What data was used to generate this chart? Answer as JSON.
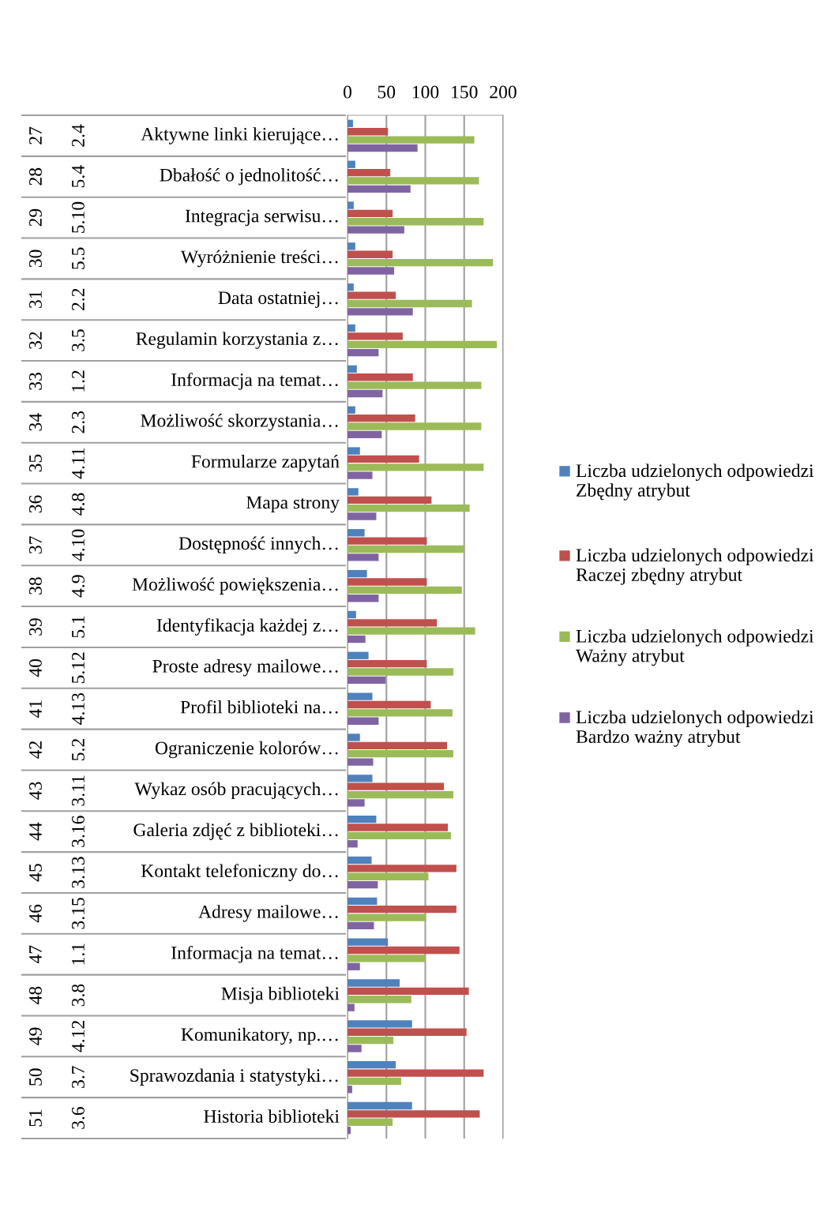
{
  "chart_data": {
    "type": "bar",
    "orientation": "horizontal",
    "categories": [
      [
        "27",
        "2.4",
        "Aktywne linki kierujące…"
      ],
      [
        "28",
        "5.4",
        "Dbałość o jednolitość…"
      ],
      [
        "29",
        "5.10",
        "Integracja serwisu…"
      ],
      [
        "30",
        "5.5",
        "Wyróżnienie treści…"
      ],
      [
        "31",
        "2.2",
        "Data ostatniej…"
      ],
      [
        "32",
        "3.5",
        "Regulamin korzystania z…"
      ],
      [
        "33",
        "1.2",
        "Informacja na temat…"
      ],
      [
        "34",
        "2.3",
        "Możliwość skorzystania…"
      ],
      [
        "35",
        "4.11",
        "Formularze zapytań"
      ],
      [
        "36",
        "4.8",
        "Mapa strony"
      ],
      [
        "37",
        "4.10",
        "Dostępność innych…"
      ],
      [
        "38",
        "4.9",
        "Możliwość powiększenia…"
      ],
      [
        "39",
        "5.1",
        "Identyfikacja każdej z…"
      ],
      [
        "40",
        "5.12",
        "Proste adresy mailowe…"
      ],
      [
        "41",
        "4.13",
        "Profil biblioteki na…"
      ],
      [
        "42",
        "5.2",
        "Ograniczenie kolorów…"
      ],
      [
        "43",
        "3.11",
        "Wykaz osób pracujących…"
      ],
      [
        "44",
        "3.16",
        "Galeria zdjęć z biblioteki…"
      ],
      [
        "45",
        "3.13",
        "Kontakt telefoniczny do…"
      ],
      [
        "46",
        "3.15",
        "Adresy mailowe…"
      ],
      [
        "47",
        "1.1",
        "Informacja na temat…"
      ],
      [
        "48",
        "3.8",
        "Misja biblioteki"
      ],
      [
        "49",
        "4.12",
        "Komunikatory, np.…"
      ],
      [
        "50",
        "3.7",
        "Sprawozdania i statystyki…"
      ],
      [
        "51",
        "3.6",
        "Historia biblioteki"
      ]
    ],
    "series": [
      {
        "name": "Liczba udzielonych odpowiedzi Zbędny atrybut",
        "color": "#4f81bd",
        "values": [
          7,
          10,
          8,
          10,
          8,
          10,
          12,
          10,
          16,
          14,
          22,
          25,
          11,
          27,
          32,
          16,
          32,
          37,
          31,
          38,
          52,
          67,
          83,
          62,
          83
        ]
      },
      {
        "name": "Liczba udzielonych odpowiedzi Raczej zbędny atrybut",
        "color": "#c0504d",
        "values": [
          52,
          55,
          58,
          58,
          62,
          71,
          84,
          87,
          92,
          108,
          102,
          102,
          115,
          102,
          107,
          128,
          124,
          129,
          140,
          140,
          144,
          156,
          153,
          175,
          170
        ]
      },
      {
        "name": "Liczba udzielonych odpowiedzi Ważny atrybut",
        "color": "#9bbb59",
        "values": [
          163,
          169,
          175,
          187,
          160,
          192,
          172,
          172,
          175,
          157,
          150,
          147,
          164,
          136,
          135,
          136,
          136,
          133,
          104,
          101,
          100,
          82,
          59,
          69,
          58
        ]
      },
      {
        "name": "Liczba udzielonych odpowiedzi Bardzo ważny atrybut",
        "color": "#8064a2",
        "values": [
          90,
          81,
          73,
          60,
          84,
          40,
          45,
          44,
          32,
          37,
          40,
          40,
          23,
          49,
          40,
          33,
          22,
          13,
          39,
          34,
          16,
          9,
          18,
          6,
          4
        ]
      }
    ],
    "xlim": [
      0,
      200
    ],
    "xticks": [
      0,
      50,
      100,
      150,
      200
    ],
    "grid": "x",
    "legend": "right"
  }
}
